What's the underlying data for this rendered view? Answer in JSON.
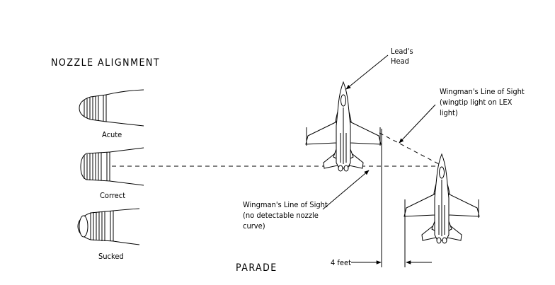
{
  "titles": {
    "nozzle_alignment": "NOZZLE ALIGNMENT",
    "parade": "PARADE"
  },
  "nozzles": [
    {
      "label": "Acute"
    },
    {
      "label": "Correct"
    },
    {
      "label": "Sucked"
    }
  ],
  "annotations": {
    "leads_head": [
      "Lead's",
      "Head"
    ],
    "wingman_los_lex": [
      "Wingman's Line of Sight",
      "(wingtip light on LEX",
      "light)"
    ],
    "wingman_los_nozzle": [
      "Wingman's Line of Sight",
      "(no detectable nozzle",
      "curve)"
    ],
    "distance": "4 feet"
  }
}
